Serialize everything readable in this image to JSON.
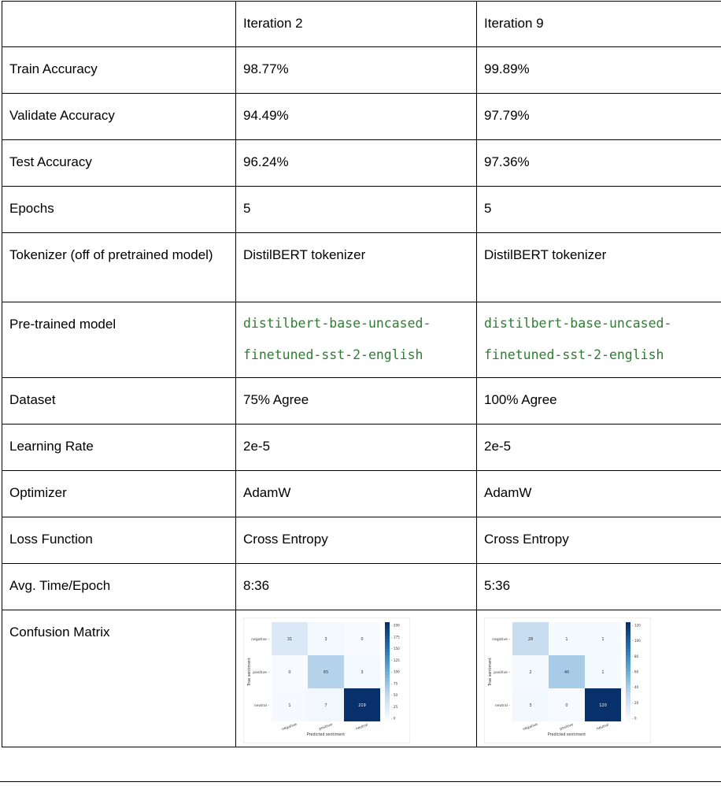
{
  "table": {
    "header": [
      "",
      "Iteration 2",
      "Iteration 9"
    ],
    "rows": [
      {
        "label": "Train Accuracy",
        "iter2": "98.77%",
        "iter9": "99.89%"
      },
      {
        "label": "Validate Accuracy",
        "iter2": "94.49%",
        "iter9": "97.79%"
      },
      {
        "label": "Test Accuracy",
        "iter2": "96.24%",
        "iter9": "97.36%"
      },
      {
        "label": "Epochs",
        "iter2": "5",
        "iter9": "5"
      },
      {
        "label": "Tokenizer (off of pretrained model)",
        "iter2": "DistilBERT tokenizer",
        "iter9": "DistilBERT tokenizer"
      },
      {
        "label": "Pre-trained model",
        "iter2_line1": "distilbert-base-uncased-",
        "iter2_line2": "finetuned-sst-2-english",
        "iter9_line1": "distilbert-base-uncased-",
        "iter9_line2": "finetuned-sst-2-english"
      },
      {
        "label": "Dataset",
        "iter2": "75% Agree",
        "iter9": "100% Agree"
      },
      {
        "label": "Learning Rate",
        "iter2": "2e-5",
        "iter9": "2e-5"
      },
      {
        "label": "Optimizer",
        "iter2": "AdamW",
        "iter9": "AdamW"
      },
      {
        "label": "Loss Function",
        "iter2": "Cross Entropy",
        "iter9": "Cross Entropy"
      },
      {
        "label": "Avg. Time/Epoch",
        "iter2": "8:36",
        "iter9": "5:36"
      },
      {
        "label": "Confusion Matrix"
      }
    ]
  },
  "matrices": {
    "iter2": {
      "labels": [
        "negative",
        "positive",
        "neutral"
      ],
      "xlabel": "Predicted sentiment",
      "ylabel": "True sentiment",
      "values": [
        [
          31,
          3,
          0
        ],
        [
          0,
          65,
          3
        ],
        [
          1,
          7,
          219
        ]
      ],
      "colorbar_ticks": [
        "200",
        "175",
        "150",
        "125",
        "100",
        "75",
        "50",
        "25",
        "0"
      ],
      "vmax": 219
    },
    "iter9": {
      "labels": [
        "negative",
        "positive",
        "neutral"
      ],
      "xlabel": "Predicted sentiment",
      "ylabel": "True sentiment",
      "values": [
        [
          28,
          1,
          1
        ],
        [
          2,
          40,
          1
        ],
        [
          3,
          0,
          120
        ]
      ],
      "colorbar_ticks": [
        "120",
        "100",
        "80",
        "60",
        "40",
        "20",
        "0"
      ],
      "vmax": 120
    }
  }
}
